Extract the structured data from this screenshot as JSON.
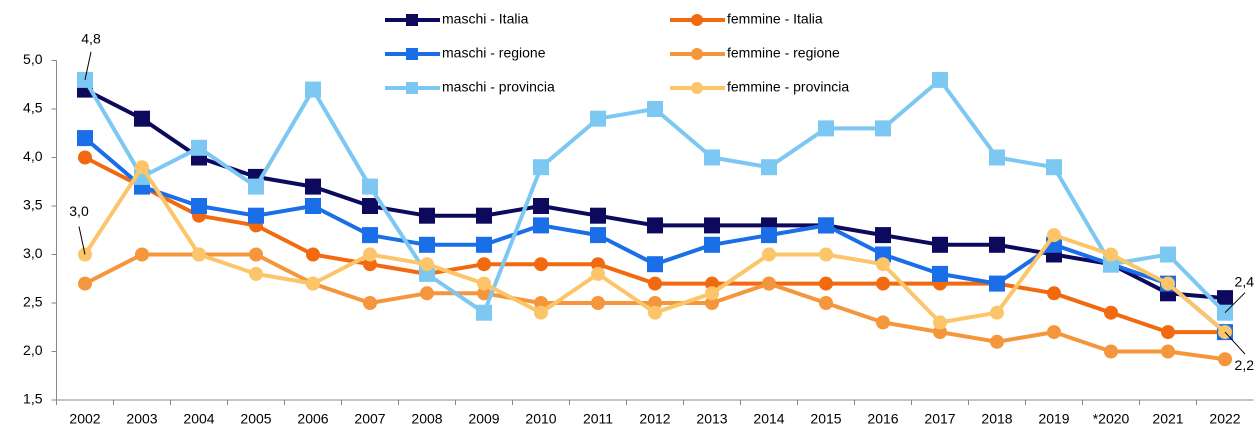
{
  "chart_data": {
    "type": "line",
    "categories": [
      "2002",
      "2003",
      "2004",
      "2005",
      "2006",
      "2007",
      "2008",
      "2009",
      "2010",
      "2011",
      "2012",
      "2013",
      "2014",
      "2015",
      "2016",
      "2017",
      "2018",
      "2019",
      "*2020",
      "2021",
      "2022"
    ],
    "ylim": [
      1.5,
      5.0
    ],
    "yticks": [
      {
        "value": 1.5,
        "label": "1,5"
      },
      {
        "value": 2.0,
        "label": "2,0"
      },
      {
        "value": 2.5,
        "label": "2,5"
      },
      {
        "value": 3.0,
        "label": "3,0"
      },
      {
        "value": 3.5,
        "label": "3,5"
      },
      {
        "value": 4.0,
        "label": "4,0"
      },
      {
        "value": 4.5,
        "label": "4,5"
      },
      {
        "value": 5.0,
        "label": "5,0"
      }
    ],
    "series": [
      {
        "name": "maschi - Italia",
        "color": "#0d0a5e",
        "marker": "square",
        "values": [
          4.7,
          4.4,
          4.0,
          3.8,
          3.7,
          3.5,
          3.4,
          3.4,
          3.5,
          3.4,
          3.3,
          3.3,
          3.3,
          3.3,
          3.2,
          3.1,
          3.1,
          3.0,
          2.9,
          2.6,
          2.55
        ]
      },
      {
        "name": "femmine - Italia",
        "color": "#f26a10",
        "marker": "circle",
        "values": [
          4.0,
          3.7,
          3.4,
          3.3,
          3.0,
          2.9,
          2.8,
          2.9,
          2.9,
          2.9,
          2.7,
          2.7,
          2.7,
          2.7,
          2.7,
          2.7,
          2.7,
          2.6,
          2.4,
          2.2,
          2.2
        ]
      },
      {
        "name": "maschi - regione",
        "color": "#1a6fe8",
        "marker": "square",
        "values": [
          4.2,
          3.7,
          3.5,
          3.4,
          3.5,
          3.2,
          3.1,
          3.1,
          3.3,
          3.2,
          2.9,
          3.1,
          3.2,
          3.3,
          3.0,
          2.8,
          2.7,
          3.1,
          2.9,
          2.7,
          2.2
        ]
      },
      {
        "name": "femmine - regione",
        "color": "#f5963c",
        "marker": "circle",
        "values": [
          2.7,
          3.0,
          3.0,
          3.0,
          2.7,
          2.5,
          2.6,
          2.6,
          2.5,
          2.5,
          2.5,
          2.5,
          2.7,
          2.5,
          2.3,
          2.2,
          2.1,
          2.2,
          2.0,
          2.0,
          1.92
        ]
      },
      {
        "name": "maschi - provincia",
        "color": "#7cc8f2",
        "marker": "square",
        "values": [
          4.8,
          3.8,
          4.1,
          3.7,
          4.7,
          3.7,
          2.8,
          2.4,
          3.9,
          4.4,
          4.5,
          4.0,
          3.9,
          4.3,
          4.3,
          4.8,
          4.0,
          3.9,
          2.9,
          3.0,
          2.4
        ],
        "value_labels": [
          "4,8",
          null,
          null,
          null,
          null,
          null,
          null,
          null,
          null,
          null,
          null,
          null,
          null,
          null,
          null,
          null,
          null,
          null,
          null,
          null,
          "2,4"
        ]
      },
      {
        "name": "femmine - provincia",
        "color": "#fcc56a",
        "marker": "circle",
        "values": [
          3.0,
          3.9,
          3.0,
          2.8,
          2.7,
          3.0,
          2.9,
          2.7,
          2.4,
          2.8,
          2.4,
          2.6,
          3.0,
          3.0,
          2.9,
          2.3,
          2.4,
          3.2,
          3.0,
          2.7,
          2.2
        ],
        "value_labels": [
          "3,0",
          null,
          null,
          null,
          null,
          null,
          null,
          null,
          null,
          null,
          null,
          null,
          null,
          null,
          null,
          null,
          null,
          null,
          null,
          null,
          "2,2"
        ]
      }
    ]
  }
}
